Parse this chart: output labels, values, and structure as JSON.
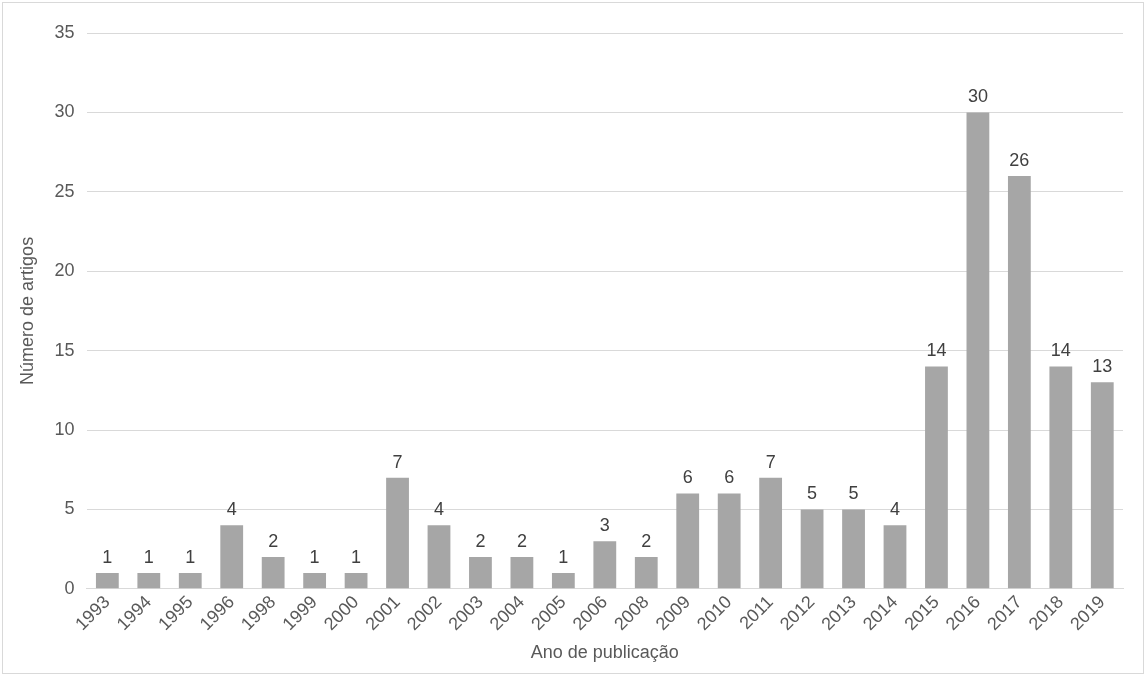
{
  "chart_data": {
    "type": "bar",
    "xlabel": "Ano de publicação",
    "ylabel": "Número de artigos",
    "categories": [
      "1993",
      "1994",
      "1995",
      "1996",
      "1998",
      "1999",
      "2000",
      "2001",
      "2002",
      "2003",
      "2004",
      "2005",
      "2006",
      "2008",
      "2009",
      "2010",
      "2011",
      "2012",
      "2013",
      "2014",
      "2015",
      "2016",
      "2017",
      "2018",
      "2019"
    ],
    "values": [
      1,
      1,
      1,
      4,
      2,
      1,
      1,
      7,
      4,
      2,
      2,
      1,
      3,
      2,
      6,
      6,
      7,
      5,
      5,
      4,
      14,
      30,
      26,
      14,
      13
    ],
    "color": "#a6a6a6",
    "ylim": [
      0,
      35
    ],
    "yticks": [
      0,
      5,
      10,
      15,
      20,
      25,
      30,
      35
    ],
    "grid": "y",
    "legend": false,
    "data_labels": true
  }
}
